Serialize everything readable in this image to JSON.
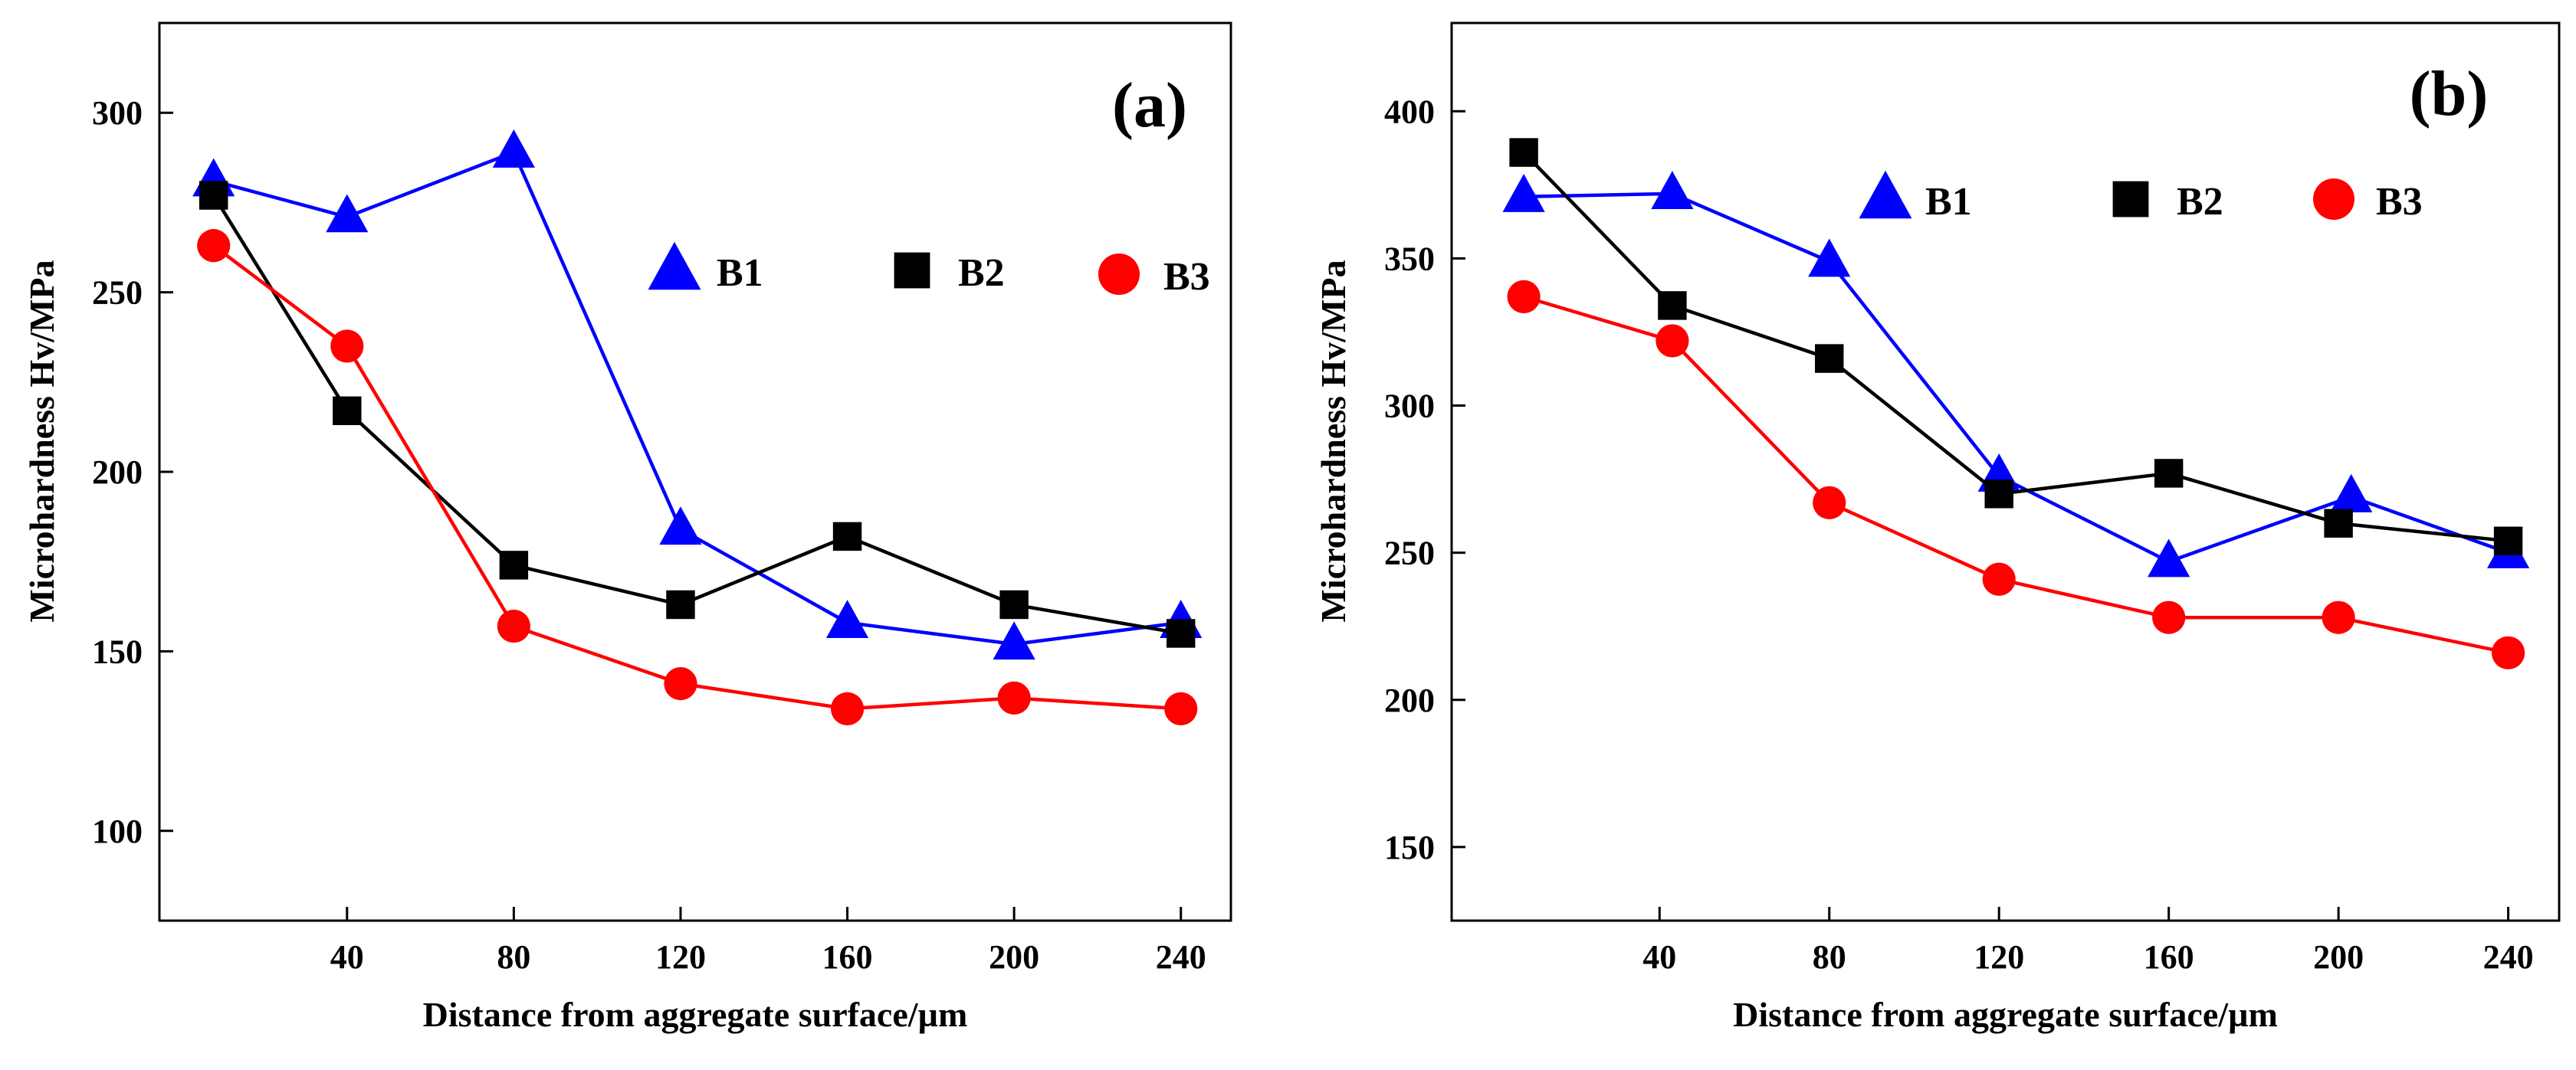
{
  "colors": {
    "B1": "#0000ff",
    "B2": "#000000",
    "B3": "#ff0000"
  },
  "chart_data": [
    {
      "type": "line",
      "panel_label": "(a)",
      "xlabel": "Distance from aggregate surface/µm",
      "ylabel": "Microhardness Hv/MPa",
      "xlim": [
        -5,
        252
      ],
      "ylim": [
        75,
        325
      ],
      "x_ticks": [
        40,
        80,
        120,
        160,
        200,
        240
      ],
      "y_ticks": [
        100,
        150,
        200,
        250,
        300
      ],
      "legend_position": "upper-right",
      "series": [
        {
          "name": "B1",
          "marker": "triangle",
          "x": [
            8,
            40,
            80,
            120,
            160,
            200,
            240
          ],
          "y": [
            281,
            271,
            289,
            184,
            158,
            152,
            158
          ]
        },
        {
          "name": "B2",
          "marker": "square",
          "x": [
            8,
            40,
            80,
            120,
            160,
            200,
            240
          ],
          "y": [
            277,
            217,
            174,
            163,
            182,
            163,
            155
          ]
        },
        {
          "name": "B3",
          "marker": "circle",
          "x": [
            8,
            40,
            80,
            120,
            160,
            200,
            240
          ],
          "y": [
            263,
            235,
            157,
            141,
            134,
            137,
            134
          ]
        }
      ]
    },
    {
      "type": "line",
      "panel_label": "(b)",
      "xlabel": "Distance from aggregate surface/µm",
      "ylabel": "Microhardness Hv/MPa",
      "xlim": [
        -9,
        252
      ],
      "ylim": [
        125,
        430
      ],
      "x_ticks": [
        40,
        80,
        120,
        160,
        200,
        240
      ],
      "y_ticks": [
        150,
        200,
        250,
        300,
        350,
        400
      ],
      "legend_position": "upper-right",
      "series": [
        {
          "name": "B1",
          "marker": "triangle",
          "x": [
            8,
            43,
            80,
            120,
            160,
            203,
            240
          ],
          "y": [
            371,
            372,
            349,
            276,
            247,
            269,
            250
          ]
        },
        {
          "name": "B2",
          "marker": "square",
          "x": [
            8,
            43,
            80,
            120,
            160,
            200,
            240
          ],
          "y": [
            386,
            334,
            316,
            270,
            277,
            260,
            254
          ]
        },
        {
          "name": "B3",
          "marker": "circle",
          "x": [
            8,
            43,
            80,
            120,
            160,
            200,
            240
          ],
          "y": [
            337,
            322,
            267,
            241,
            228,
            228,
            216
          ]
        }
      ]
    }
  ]
}
